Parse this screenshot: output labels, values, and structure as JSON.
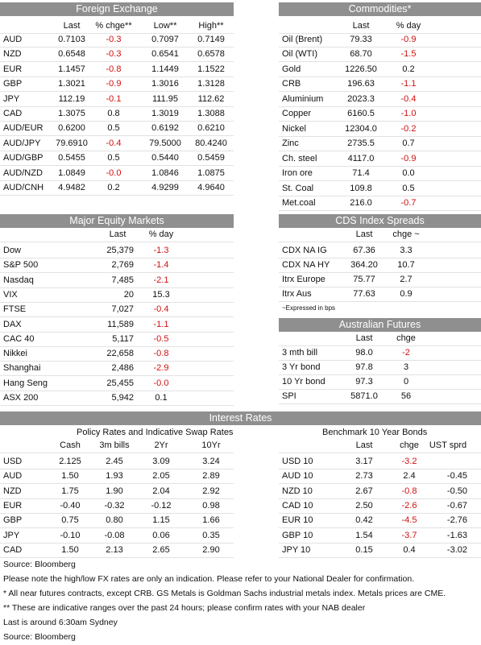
{
  "foreign_exchange": {
    "title": "Foreign Exchange",
    "columns": [
      "Last",
      "% chge**",
      "Low**",
      "High**"
    ],
    "rows": [
      [
        "AUD",
        "0.7103",
        "-0.3",
        "0.7097",
        "0.7149"
      ],
      [
        "NZD",
        "0.6548",
        "-0.3",
        "0.6541",
        "0.6578"
      ],
      [
        "EUR",
        "1.1457",
        "-0.8",
        "1.1449",
        "1.1522"
      ],
      [
        "GBP",
        "1.3021",
        "-0.9",
        "1.3016",
        "1.3128"
      ],
      [
        "JPY",
        "112.19",
        "-0.1",
        "111.95",
        "112.62"
      ],
      [
        "CAD",
        "1.3075",
        "0.8",
        "1.3019",
        "1.3088"
      ],
      [
        "AUD/EUR",
        "0.6200",
        "0.5",
        "0.6192",
        "0.6210"
      ],
      [
        "AUD/JPY",
        "79.6910",
        "-0.4",
        "79.5000",
        "80.4240"
      ],
      [
        "AUD/GBP",
        "0.5455",
        "0.5",
        "0.5440",
        "0.5459"
      ],
      [
        "AUD/NZD",
        "1.0849",
        "-0.0",
        "1.0846",
        "1.0875"
      ],
      [
        "AUD/CNH",
        "4.9482",
        "0.2",
        "4.9299",
        "4.9640"
      ]
    ]
  },
  "commodities": {
    "title": "Commodities*",
    "columns": [
      "Last",
      "% day"
    ],
    "rows": [
      [
        "Oil (Brent)",
        "79.33",
        "-0.9"
      ],
      [
        "Oil (WTI)",
        "68.70",
        "-1.5"
      ],
      [
        "Gold",
        "1226.50",
        "0.2"
      ],
      [
        "CRB",
        "196.63",
        "-1.1"
      ],
      [
        "Aluminium",
        "2023.3",
        "-0.4"
      ],
      [
        "Copper",
        "6160.5",
        "-1.0"
      ],
      [
        "Nickel",
        "12304.0",
        "-0.2"
      ],
      [
        "Zinc",
        "2735.5",
        "0.7"
      ],
      [
        "Ch. steel",
        "4117.0",
        "-0.9"
      ],
      [
        "Iron ore",
        "71.4",
        "0.0"
      ],
      [
        "St. Coal",
        "109.8",
        "0.5"
      ],
      [
        "Met.coal",
        "216.0",
        "-0.7"
      ]
    ]
  },
  "major_equity_markets": {
    "title": "Major Equity Markets",
    "columns": [
      "Last",
      "% day"
    ],
    "rows": [
      [
        "Dow",
        "25,379",
        "-1.3"
      ],
      [
        "S&P 500",
        "2,769",
        "-1.4"
      ],
      [
        "Nasdaq",
        "7,485",
        "-2.1"
      ],
      [
        "VIX",
        "20",
        "15.3"
      ],
      [
        "FTSE",
        "7,027",
        "-0.4"
      ],
      [
        "DAX",
        "11,589",
        "-1.1"
      ],
      [
        "CAC 40",
        "5,117",
        "-0.5"
      ],
      [
        "Nikkei",
        "22,658",
        "-0.8"
      ],
      [
        "Shanghai",
        "2,486",
        "-2.9"
      ],
      [
        "Hang Seng",
        "25,455",
        "-0.0"
      ],
      [
        "ASX 200",
        "5,942",
        "0.1"
      ]
    ]
  },
  "cds_index_spreads": {
    "title": "CDS Index Spreads",
    "columns": [
      "Last",
      "chge ~"
    ],
    "rows": [
      [
        "CDX NA IG",
        "67.36",
        "3.3"
      ],
      [
        "CDX NA HY",
        "364.20",
        "10.7"
      ],
      [
        "Itrx Europe",
        "75.77",
        "2.7"
      ],
      [
        "Itrx Aus",
        "77.63",
        "0.9"
      ]
    ],
    "note": "~Expressed in bps"
  },
  "australian_futures": {
    "title": "Australian Futures",
    "columns": [
      "Last",
      "chge"
    ],
    "rows": [
      [
        "3 mth bill",
        "98.0",
        "-2"
      ],
      [
        "3 Yr bond",
        "97.8",
        "3"
      ],
      [
        "10 Yr bond",
        "97.3",
        "0"
      ],
      [
        "SPI",
        "5871.0",
        "56"
      ]
    ]
  },
  "interest_rates": {
    "title": "Interest Rates",
    "policy_rates": {
      "title": "Policy Rates and Indicative Swap Rates",
      "columns": [
        "Cash",
        "3m bills",
        "2Yr",
        "10Yr"
      ],
      "rows": [
        [
          "USD",
          "2.125",
          "2.45",
          "3.09",
          "3.24"
        ],
        [
          "AUD",
          "1.50",
          "1.93",
          "2.05",
          "2.89"
        ],
        [
          "NZD",
          "1.75",
          "1.90",
          "2.04",
          "2.92"
        ],
        [
          "EUR",
          "-0.40",
          "-0.32",
          "-0.12",
          "0.98"
        ],
        [
          "GBP",
          "0.75",
          "0.80",
          "1.15",
          "1.66"
        ],
        [
          "JPY",
          "-0.10",
          "-0.08",
          "0.06",
          "0.35"
        ],
        [
          "CAD",
          "1.50",
          "2.13",
          "2.65",
          "2.90"
        ]
      ]
    },
    "benchmark_bonds": {
      "title": "Benchmark 10 Year Bonds",
      "columns": [
        "Last",
        "chge",
        "UST sprd"
      ],
      "rows": [
        [
          "USD 10",
          "3.17",
          "-3.2"
        ],
        [
          "AUD 10",
          "2.73",
          "2.4",
          "-0.45"
        ],
        [
          "NZD 10",
          "2.67",
          "-0.8",
          "-0.50"
        ],
        [
          "CAD 10",
          "2.50",
          "-2.6",
          "-0.67"
        ],
        [
          "EUR 10",
          "0.42",
          "-4.5",
          "-2.76"
        ],
        [
          "GBP 10",
          "1.54",
          "-3.7",
          "-1.63"
        ],
        [
          "JPY 10",
          "0.15",
          "0.4",
          "-3.02"
        ]
      ]
    }
  },
  "footnotes": [
    "Source: Bloomberg",
    "Please note the high/low FX rates are only an indication. Please refer to your National Dealer for confirmation.",
    "* All near futures contracts, except CRB.  GS Metals is Goldman Sachs industrial metals index.  Metals prices are CME.",
    "** These are indicative ranges over the past 24 hours; please confirm rates with your NAB dealer",
    "Last is around 6:30am Sydney",
    "Source: Bloomberg"
  ]
}
